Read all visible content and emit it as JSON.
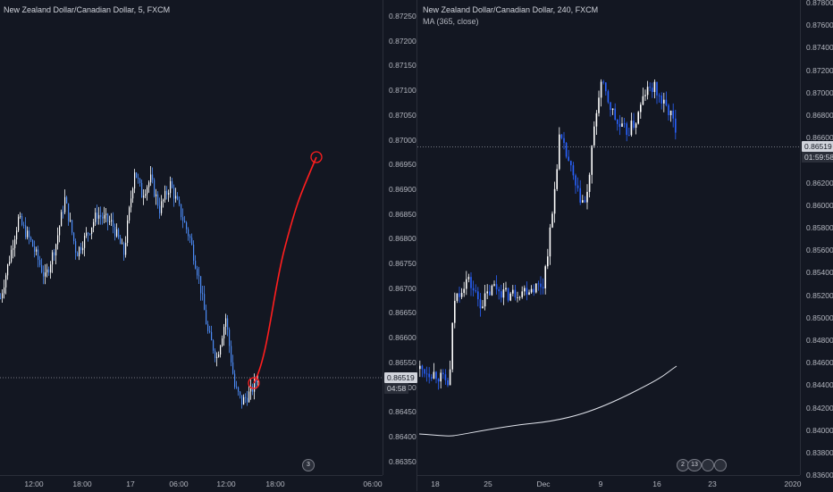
{
  "left_chart": {
    "title": "New Zealand Dollar/Canadian Dollar, 5, FXCM",
    "y_ticks": [
      "0.87250",
      "0.87200",
      "0.87150",
      "0.87100",
      "0.87050",
      "0.87000",
      "0.86950",
      "0.86900",
      "0.86850",
      "0.86800",
      "0.86750",
      "0.86700",
      "0.86650",
      "0.86600",
      "0.86550",
      "0.86500",
      "0.86450",
      "0.86400",
      "0.86350"
    ],
    "x_ticks": [
      "12:00",
      "18:00",
      "17",
      "06:00",
      "12:00",
      "18:00",
      "06:00"
    ],
    "x_tick_values": [
      0.04,
      0.17,
      0.31,
      0.45,
      0.58,
      0.72,
      0.86
    ],
    "last_price": "0.86519",
    "countdown": "04:58",
    "event_badge": "3",
    "colors": {
      "up": "#ffffff",
      "down": "#4c8bf5",
      "drawing": "#ff1e1e"
    }
  },
  "right_chart": {
    "title": "New Zealand Dollar/Canadian Dollar, 240, FXCM",
    "indicator": "MA (365, close)",
    "y_ticks": [
      "0.87800",
      "0.87600",
      "0.87400",
      "0.87200",
      "0.87000",
      "0.86800",
      "0.86600",
      "0.86400",
      "0.86200",
      "0.86000",
      "0.85800",
      "0.85600",
      "0.85400",
      "0.85200",
      "0.85000",
      "0.84800",
      "0.84600",
      "0.84400",
      "0.84200",
      "0.84000",
      "0.83800",
      "0.83600"
    ],
    "x_ticks": [
      "18",
      "25",
      "Dec",
      "9",
      "16",
      "23",
      "2020"
    ],
    "last_price": "0.86519",
    "countdown": "01:59:58",
    "event_badges": [
      "2",
      "13"
    ],
    "colors": {
      "up": "#ffffff",
      "down": "#2962ff",
      "ma": "#e0e3eb"
    }
  }
}
